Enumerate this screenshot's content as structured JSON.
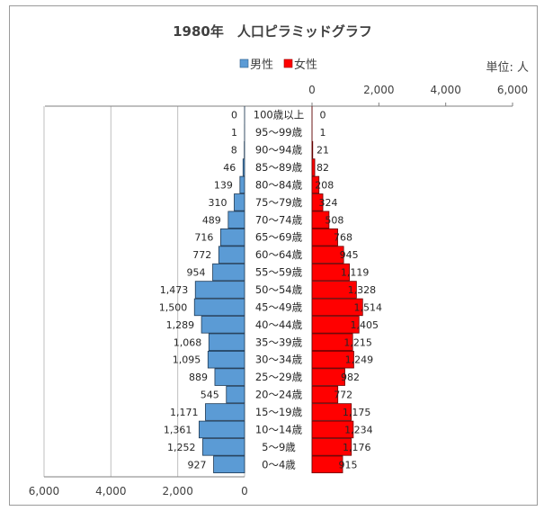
{
  "chart_data": {
    "type": "bar",
    "title": "1980年　人口ピラミッドグラフ",
    "unit_label": "単位: 人",
    "legend_position": "top",
    "colors": {
      "male": "#5b9bd5",
      "female": "#ff0000",
      "grid": "#bfbfbf",
      "axis": "#7f7f7f"
    },
    "series": [
      {
        "name": "男性",
        "side": "left",
        "values": [
          0,
          1,
          8,
          46,
          139,
          310,
          489,
          716,
          772,
          954,
          1473,
          1500,
          1289,
          1068,
          1095,
          889,
          545,
          1171,
          1361,
          1252,
          927
        ],
        "labels": [
          "0",
          "1",
          "8",
          "46",
          "139",
          "310",
          "489",
          "716",
          "772",
          "954",
          "1,473",
          "1,500",
          "1,289",
          "1,068",
          "1,095",
          "889",
          "545",
          "1,171",
          "1,361",
          "1,252",
          "927"
        ]
      },
      {
        "name": "女性",
        "side": "right",
        "values": [
          0,
          1,
          21,
          82,
          208,
          324,
          508,
          768,
          945,
          1119,
          1328,
          1514,
          1405,
          1215,
          1249,
          982,
          772,
          1175,
          1234,
          1176,
          915
        ],
        "labels": [
          "0",
          "1",
          "21",
          "82",
          "208",
          "324",
          "508",
          "768",
          "945",
          "1,119",
          "1,328",
          "1,514",
          "1,405",
          "1,215",
          "1,249",
          "982",
          "772",
          "1,175",
          "1,234",
          "1,176",
          "915"
        ]
      }
    ],
    "categories": [
      "100歳以上",
      "95～99歳",
      "90～94歳",
      "85～89歳",
      "80～84歳",
      "75～79歳",
      "70～74歳",
      "65～69歳",
      "60～64歳",
      "55～59歳",
      "50～54歳",
      "45～49歳",
      "40～44歳",
      "35～39歳",
      "30～34歳",
      "25～29歳",
      "20～24歳",
      "15～19歳",
      "10～14歳",
      "5～9歳",
      "0～4歳"
    ],
    "male_axis": {
      "ticks": [
        6000,
        4000,
        2000,
        0
      ],
      "tick_labels": [
        "6,000",
        "4,000",
        "2,000",
        "0"
      ],
      "range": [
        0,
        6000
      ],
      "grid": true
    },
    "female_axis": {
      "ticks": [
        0,
        2000,
        4000,
        6000
      ],
      "tick_labels": [
        "0",
        "2,000",
        "4,000",
        "6,000"
      ],
      "range": [
        0,
        6000
      ]
    }
  }
}
